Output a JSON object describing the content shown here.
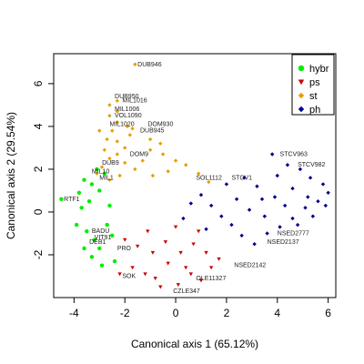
{
  "chart_data": {
    "type": "scatter",
    "title": "",
    "xlabel": "Canonical axis 1 (65.12%)",
    "ylabel": "Canonical axis 2 (29.54%)",
    "xlim": [
      -4.8,
      6.3
    ],
    "ylim": [
      -4.0,
      7.4
    ],
    "xticks": [
      -4,
      -2,
      0,
      2,
      4,
      6
    ],
    "yticks": [
      -2,
      0,
      2,
      4,
      6
    ],
    "legend": {
      "position": "top-right",
      "entries": [
        {
          "label": "hybr",
          "color": "#00ee00",
          "shape": "circle"
        },
        {
          "label": "ps",
          "color": "#cc0000",
          "shape": "triangle-down"
        },
        {
          "label": "st",
          "color": "#e69f00",
          "shape": "diamond"
        },
        {
          "label": "ph",
          "color": "#00008b",
          "shape": "diamond"
        }
      ]
    },
    "series": [
      {
        "name": "hybr",
        "color": "#00ee00",
        "shape": "circle",
        "points": [
          [
            -4.5,
            0.6
          ],
          [
            -3.6,
            1.5
          ],
          [
            -3.8,
            0.9
          ],
          [
            -3.3,
            1.3
          ],
          [
            -3.0,
            1.0
          ],
          [
            -3.4,
            0.5
          ],
          [
            -3.7,
            0.2
          ],
          [
            -3.9,
            -0.6
          ],
          [
            -3.5,
            -0.9
          ],
          [
            -3.2,
            -1.3
          ],
          [
            -3.0,
            -1.7
          ],
          [
            -3.3,
            -2.1
          ],
          [
            -2.9,
            -2.5
          ],
          [
            -2.7,
            -0.6
          ],
          [
            -2.5,
            -1.1
          ],
          [
            -2.8,
            1.8
          ],
          [
            -3.1,
            2.0
          ],
          [
            -2.6,
            0.3
          ],
          [
            -3.6,
            -1.7
          ],
          [
            -2.4,
            -2.3
          ]
        ],
        "labels": [
          {
            "text": "RTF1",
            "x": -4.4,
            "y": 0.6
          },
          {
            "text": "VIT91",
            "x": -3.2,
            "y": -1.2
          },
          {
            "text": "BADU",
            "x": -3.3,
            "y": -0.9
          },
          {
            "text": "DEB1",
            "x": -3.4,
            "y": -1.4
          }
        ]
      },
      {
        "name": "ps",
        "color": "#cc0000",
        "shape": "triangle-down",
        "points": [
          [
            -2.2,
            -2.9
          ],
          [
            -1.7,
            -2.6
          ],
          [
            -1.2,
            -2.9
          ],
          [
            -0.8,
            -3.1
          ],
          [
            -0.3,
            -2.4
          ],
          [
            0.1,
            -3.4
          ],
          [
            0.6,
            -2.9
          ],
          [
            1.0,
            -3.2
          ],
          [
            1.4,
            -2.6
          ],
          [
            -1.5,
            -1.6
          ],
          [
            -0.9,
            -1.9
          ],
          [
            -0.4,
            -1.4
          ],
          [
            0.2,
            -1.9
          ],
          [
            0.7,
            -1.5
          ],
          [
            1.2,
            -1.9
          ],
          [
            1.7,
            -2.2
          ],
          [
            -2.0,
            -1.3
          ],
          [
            -1.1,
            -0.9
          ],
          [
            0.0,
            -0.7
          ],
          [
            0.9,
            -0.9
          ],
          [
            -0.6,
            -3.5
          ],
          [
            0.4,
            -2.6
          ]
        ],
        "labels": [
          {
            "text": "PRO",
            "x": -2.3,
            "y": -1.7
          },
          {
            "text": "SOK",
            "x": -2.1,
            "y": -3.0
          },
          {
            "text": "CZLE347",
            "x": -0.1,
            "y": -3.7
          },
          {
            "text": "NSED2142",
            "x": 2.3,
            "y": -2.5
          },
          {
            "text": "OLE11327",
            "x": 0.8,
            "y": -3.1
          }
        ]
      },
      {
        "name": "st",
        "color": "#e69f00",
        "shape": "diamond",
        "points": [
          [
            -1.6,
            6.9
          ],
          [
            -2.3,
            5.2
          ],
          [
            -2.6,
            5.0
          ],
          [
            -2.3,
            4.7
          ],
          [
            -2.6,
            4.5
          ],
          [
            -2.3,
            4.2
          ],
          [
            -1.7,
            3.9
          ],
          [
            -2.5,
            3.8
          ],
          [
            -1.9,
            4.0
          ],
          [
            -3.0,
            3.8
          ],
          [
            -2.7,
            3.4
          ],
          [
            -2.3,
            3.3
          ],
          [
            -2.0,
            3.0
          ],
          [
            -2.8,
            2.9
          ],
          [
            -2.3,
            2.7
          ],
          [
            -2.6,
            2.5
          ],
          [
            -2.0,
            2.3
          ],
          [
            -2.9,
            2.1
          ],
          [
            -3.1,
            1.8
          ],
          [
            -2.6,
            1.5
          ],
          [
            -2.2,
            1.7
          ],
          [
            -1.6,
            2.0
          ],
          [
            -1.3,
            2.4
          ],
          [
            -1.0,
            2.9
          ],
          [
            -0.5,
            2.7
          ],
          [
            0.0,
            2.4
          ],
          [
            -0.3,
            1.9
          ],
          [
            0.4,
            2.2
          ],
          [
            0.9,
            1.8
          ],
          [
            1.3,
            1.4
          ],
          [
            -1.8,
            3.6
          ],
          [
            -1.0,
            3.4
          ],
          [
            -0.6,
            3.2
          ],
          [
            -0.9,
            1.7
          ]
        ],
        "labels": [
          {
            "text": "DUB946",
            "x": -1.5,
            "y": 6.9
          },
          {
            "text": "DUB950",
            "x": -2.4,
            "y": 5.4
          },
          {
            "text": "MIL1016",
            "x": -2.1,
            "y": 5.2
          },
          {
            "text": "MIL1006",
            "x": -2.4,
            "y": 4.8
          },
          {
            "text": "VOL1090",
            "x": -2.4,
            "y": 4.5
          },
          {
            "text": "MIL1020",
            "x": -2.6,
            "y": 4.1
          },
          {
            "text": "DOM930",
            "x": -1.1,
            "y": 4.1
          },
          {
            "text": "DUB945",
            "x": -1.4,
            "y": 3.8
          },
          {
            "text": "MIL10",
            "x": -3.3,
            "y": 1.9
          },
          {
            "text": "DUB9",
            "x": -2.9,
            "y": 2.3
          },
          {
            "text": "MIL1",
            "x": -3.0,
            "y": 1.6
          },
          {
            "text": "DOM9",
            "x": -1.8,
            "y": 2.7
          }
        ]
      },
      {
        "name": "ph",
        "color": "#00008b",
        "shape": "diamond",
        "points": [
          [
            3.8,
            2.7
          ],
          [
            4.4,
            2.2
          ],
          [
            4.9,
            2.0
          ],
          [
            5.3,
            1.6
          ],
          [
            5.8,
            1.3
          ],
          [
            6.0,
            0.9
          ],
          [
            5.6,
            0.5
          ],
          [
            5.1,
            0.2
          ],
          [
            4.6,
            -0.3
          ],
          [
            4.1,
            -0.7
          ],
          [
            3.6,
            -1.0
          ],
          [
            3.1,
            -1.5
          ],
          [
            2.6,
            -1.1
          ],
          [
            2.2,
            -0.6
          ],
          [
            1.8,
            -0.2
          ],
          [
            1.4,
            0.3
          ],
          [
            1.0,
            0.8
          ],
          [
            2.0,
            1.3
          ],
          [
            2.7,
            1.6
          ],
          [
            3.2,
            1.2
          ],
          [
            3.9,
            0.7
          ],
          [
            4.3,
            0.3
          ],
          [
            4.8,
            -0.6
          ],
          [
            5.4,
            -0.2
          ],
          [
            5.9,
            0.3
          ],
          [
            2.9,
            0.1
          ],
          [
            3.5,
            -0.2
          ],
          [
            4.0,
            1.7
          ],
          [
            4.6,
            1.1
          ],
          [
            5.2,
            0.7
          ],
          [
            0.6,
            0.4
          ],
          [
            1.2,
            -0.8
          ],
          [
            2.4,
            0.6
          ],
          [
            3.4,
            0.6
          ],
          [
            0.3,
            -0.3
          ]
        ],
        "labels": [
          {
            "text": "STCV963",
            "x": 4.1,
            "y": 2.7
          },
          {
            "text": "STCV982",
            "x": 4.8,
            "y": 2.2
          },
          {
            "text": "SOL1112",
            "x": 0.8,
            "y": 1.6
          },
          {
            "text": "STCV1",
            "x": 2.2,
            "y": 1.6
          },
          {
            "text": "NSED2777",
            "x": 4.0,
            "y": -1.0
          },
          {
            "text": "NSED2137",
            "x": 3.6,
            "y": -1.4
          }
        ]
      }
    ]
  }
}
